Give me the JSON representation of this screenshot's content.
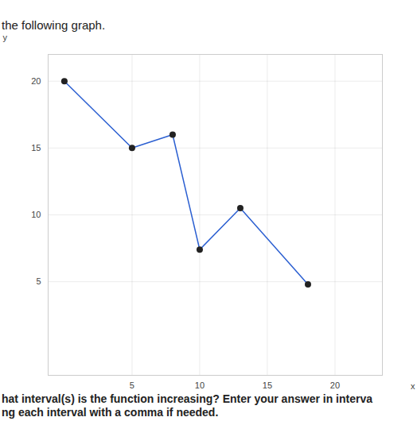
{
  "chart_data": {
    "type": "line",
    "title": "the following graph.",
    "x": [
      0,
      5,
      8,
      10,
      13,
      18
    ],
    "values": [
      20,
      15,
      16,
      7.4,
      10.5,
      4.8
    ],
    "x_label": "x",
    "y_label": "y",
    "xlim": [
      -1.2,
      23.5
    ],
    "ylim": [
      -2,
      22
    ],
    "xticks": [
      5,
      10,
      15,
      20
    ],
    "yticks": [
      5,
      10,
      15,
      20
    ],
    "grid": true,
    "color": "#2b5fd1",
    "marker": "circle",
    "caption": [
      "hat interval(s) is the function increasing? Enter your answer in interva",
      "ng each interval with a comma if needed."
    ]
  }
}
